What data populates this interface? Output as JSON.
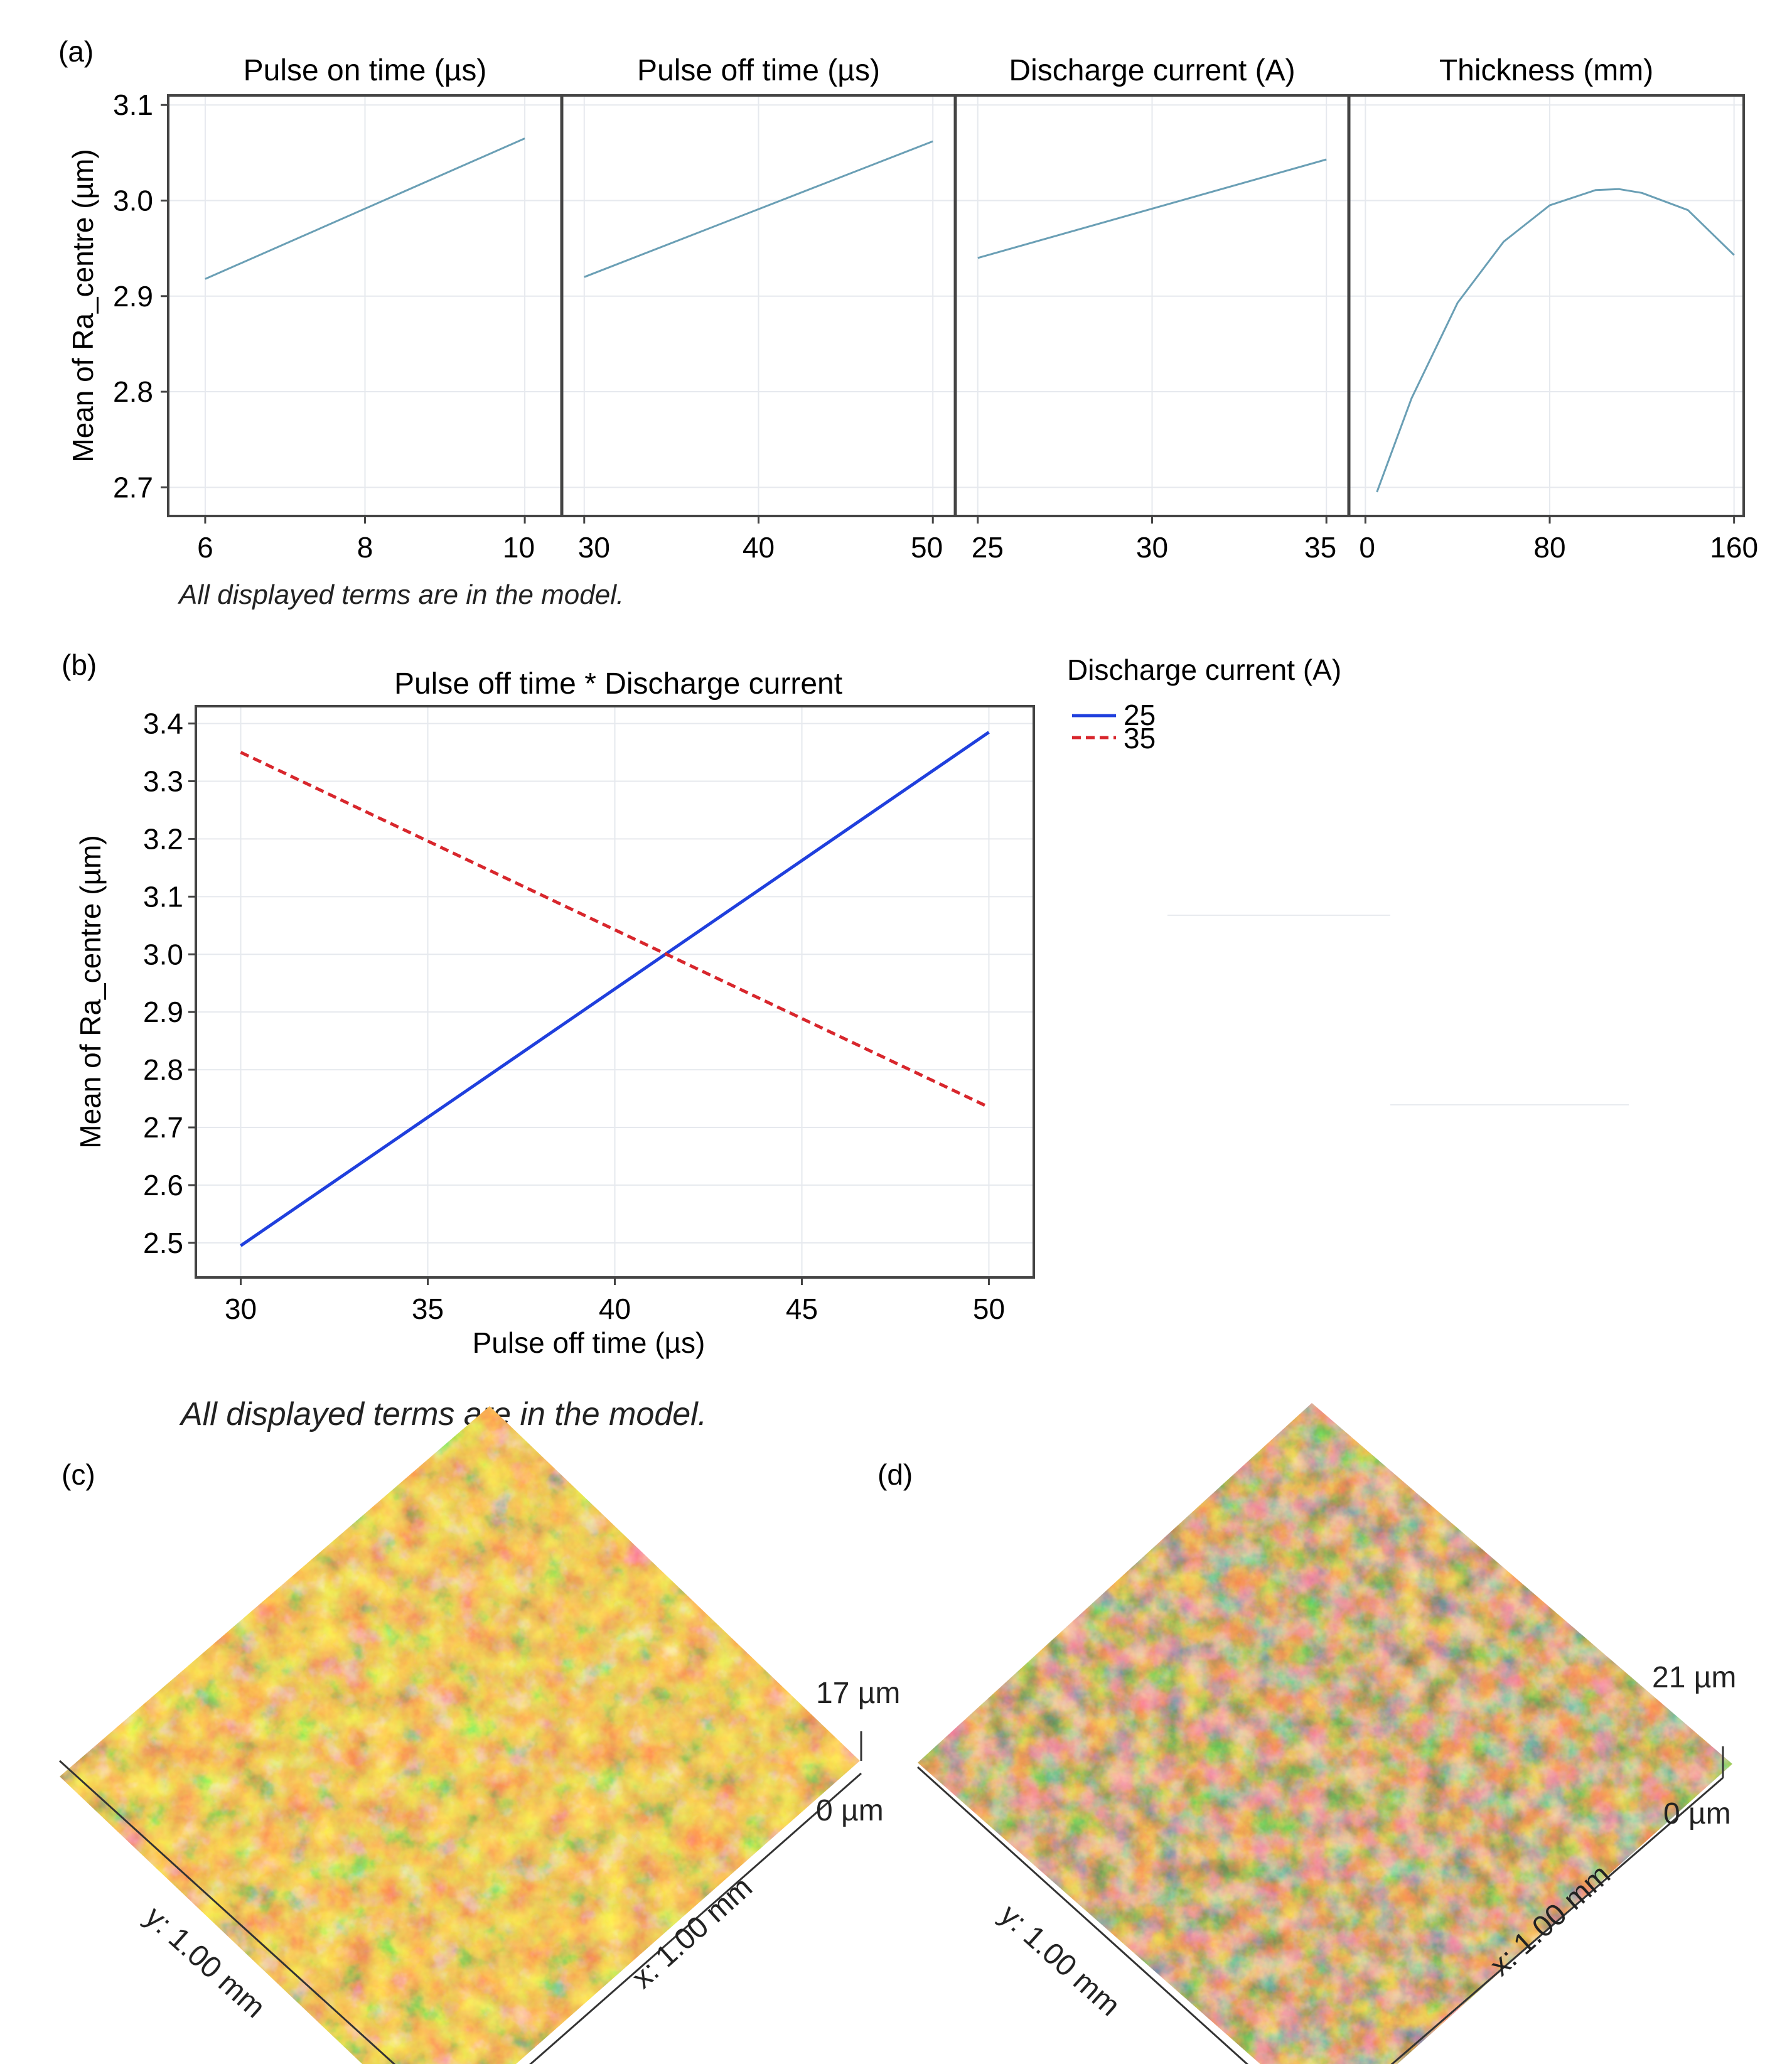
{
  "panel_labels": {
    "a": "(a)",
    "b": "(b)",
    "c": "(c)",
    "d": "(d)"
  },
  "colors": {
    "main_effect_line": "#6a9fb5",
    "series_25": "#1f3fdd",
    "series_35": "#d8262c"
  },
  "chart_data": [
    {
      "id": "main-effects",
      "type": "line",
      "ylabel": "Mean of Ra_centre (µm)",
      "ylim": [
        2.67,
        3.11
      ],
      "yticks": [
        2.7,
        2.8,
        2.9,
        3.0,
        3.1
      ],
      "ytick_labels": [
        "2.7",
        "2.8",
        "2.9",
        "3.0",
        "3.1"
      ],
      "note": "All displayed terms are in the model.",
      "panels": [
        {
          "title": "Pulse on time (µs)",
          "xlim": [
            5.6,
            10.4
          ],
          "xticks": [
            6,
            8,
            10
          ],
          "xtick_labels": [
            "6",
            "8",
            "10"
          ],
          "x": [
            6,
            10
          ],
          "y": [
            2.918,
            3.065
          ]
        },
        {
          "title": "Pulse off time (µs)",
          "xlim": [
            29,
            51
          ],
          "xticks": [
            30,
            40,
            50
          ],
          "xtick_labels": [
            "30",
            "40",
            "50"
          ],
          "x": [
            30,
            50
          ],
          "y": [
            2.92,
            3.062
          ]
        },
        {
          "title": "Discharge current (A)",
          "xlim": [
            24.5,
            35.5
          ],
          "xticks": [
            25,
            30,
            35
          ],
          "xtick_labels": [
            "25",
            "30",
            "35"
          ],
          "x": [
            25,
            35
          ],
          "y": [
            2.94,
            3.043
          ]
        },
        {
          "title": "Thickness (mm)",
          "xlim": [
            -5,
            162
          ],
          "xticks": [
            0,
            80,
            160
          ],
          "xtick_labels": [
            "0",
            "80",
            "160"
          ],
          "x": [
            5,
            20,
            40,
            60,
            80,
            100,
            110,
            120,
            140,
            160
          ],
          "y": [
            2.695,
            2.793,
            2.893,
            2.957,
            2.995,
            3.011,
            3.012,
            3.008,
            2.99,
            2.943
          ]
        }
      ]
    },
    {
      "id": "interaction",
      "type": "line",
      "title": "Pulse off time * Discharge current",
      "xlabel": "Pulse off time (µs)",
      "ylabel": "Mean of Ra_centre (µm)",
      "xlim": [
        28.8,
        51.2
      ],
      "ylim": [
        2.44,
        3.43
      ],
      "xticks": [
        30,
        35,
        40,
        45,
        50
      ],
      "xtick_labels": [
        "30",
        "35",
        "40",
        "45",
        "50"
      ],
      "yticks": [
        2.5,
        2.6,
        2.7,
        2.8,
        2.9,
        3.0,
        3.1,
        3.2,
        3.3,
        3.4
      ],
      "ytick_labels": [
        "2.5",
        "2.6",
        "2.7",
        "2.8",
        "2.9",
        "3.0",
        "3.1",
        "3.2",
        "3.3",
        "3.4"
      ],
      "x": [
        30,
        50
      ],
      "legend_title": "Discharge current (A)",
      "legend_position": "right",
      "series": [
        {
          "name": "25",
          "values": [
            2.495,
            3.385
          ],
          "style": "solid"
        },
        {
          "name": "35",
          "values": [
            3.35,
            2.735
          ],
          "style": "dashed"
        }
      ],
      "note": "All displayed terms are in the model."
    }
  ],
  "surfaces": {
    "c": {
      "max_label": "17 µm",
      "min_label": "0 µm",
      "y_axis": "y: 1.00 mm",
      "x_axis": "x: 1.00 mm"
    },
    "d": {
      "max_label": "21 µm",
      "min_label": "0 µm",
      "y_axis": "y: 1.00 mm",
      "x_axis": "x: 1.00 mm"
    }
  }
}
